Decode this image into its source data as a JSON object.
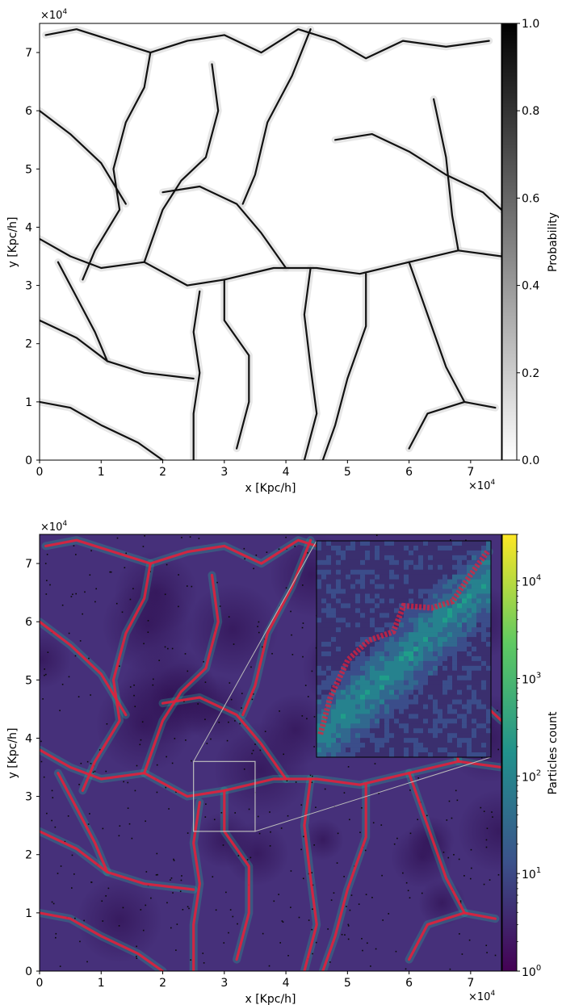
{
  "chart_data": [
    {
      "type": "heatmap",
      "title": "",
      "xlabel": "x [Kpc/h]",
      "ylabel": "y [Kpc/h]",
      "x_offset_label": "×10",
      "x_offset_exp": "4",
      "y_offset_label": "×10",
      "y_offset_exp": "4",
      "xlim": [
        0,
        7.5
      ],
      "ylim": [
        0,
        7.5
      ],
      "xticks": [
        "0",
        "1",
        "2",
        "3",
        "4",
        "5",
        "6",
        "7"
      ],
      "yticks": [
        "0",
        "1",
        "2",
        "3",
        "4",
        "5",
        "6",
        "7"
      ],
      "colormap": "gray_r",
      "colorbar": {
        "label": "Probability",
        "scale": "linear",
        "range": [
          0,
          1
        ],
        "ticks": [
          "0.0",
          "0.2",
          "0.4",
          "0.6",
          "0.8",
          "1.0"
        ],
        "colors": [
          "#ffffff",
          "#000000"
        ]
      },
      "filament_paths": [
        [
          [
            0.1,
            7.3
          ],
          [
            0.6,
            7.4
          ],
          [
            1.2,
            7.2
          ],
          [
            1.8,
            7.0
          ],
          [
            2.4,
            7.2
          ],
          [
            3.0,
            7.3
          ],
          [
            3.6,
            7.0
          ],
          [
            4.2,
            7.4
          ],
          [
            4.8,
            7.2
          ],
          [
            5.3,
            6.9
          ],
          [
            5.9,
            7.2
          ],
          [
            6.6,
            7.1
          ],
          [
            7.3,
            7.2
          ]
        ],
        [
          [
            1.8,
            7.0
          ],
          [
            1.7,
            6.4
          ],
          [
            1.4,
            5.8
          ],
          [
            1.2,
            5.0
          ],
          [
            1.3,
            4.3
          ],
          [
            0.9,
            3.6
          ],
          [
            0.7,
            3.1
          ]
        ],
        [
          [
            0.0,
            6.0
          ],
          [
            0.5,
            5.6
          ],
          [
            1.0,
            5.1
          ],
          [
            1.4,
            4.4
          ]
        ],
        [
          [
            0.0,
            3.8
          ],
          [
            0.5,
            3.5
          ],
          [
            1.0,
            3.3
          ],
          [
            1.7,
            3.4
          ],
          [
            2.4,
            3.0
          ],
          [
            3.0,
            3.1
          ],
          [
            3.8,
            3.3
          ],
          [
            4.5,
            3.3
          ],
          [
            5.2,
            3.2
          ],
          [
            6.0,
            3.4
          ],
          [
            6.8,
            3.6
          ],
          [
            7.5,
            3.5
          ]
        ],
        [
          [
            2.0,
            4.6
          ],
          [
            2.6,
            4.7
          ],
          [
            3.2,
            4.4
          ],
          [
            3.6,
            3.9
          ],
          [
            4.0,
            3.3
          ]
        ],
        [
          [
            2.8,
            6.8
          ],
          [
            2.9,
            6.0
          ],
          [
            2.7,
            5.2
          ],
          [
            2.3,
            4.8
          ],
          [
            2.0,
            4.3
          ],
          [
            1.7,
            3.4
          ]
        ],
        [
          [
            4.4,
            7.4
          ],
          [
            4.1,
            6.6
          ],
          [
            3.7,
            5.8
          ],
          [
            3.5,
            4.9
          ],
          [
            3.3,
            4.4
          ]
        ],
        [
          [
            4.8,
            5.5
          ],
          [
            5.4,
            5.6
          ],
          [
            6.0,
            5.3
          ],
          [
            6.6,
            4.9
          ],
          [
            7.2,
            4.6
          ],
          [
            7.5,
            4.3
          ]
        ],
        [
          [
            6.4,
            6.2
          ],
          [
            6.6,
            5.2
          ],
          [
            6.7,
            4.2
          ],
          [
            6.8,
            3.6
          ]
        ],
        [
          [
            2.6,
            2.9
          ],
          [
            2.5,
            2.2
          ],
          [
            2.6,
            1.5
          ],
          [
            2.5,
            0.8
          ],
          [
            2.5,
            0.0
          ]
        ],
        [
          [
            4.4,
            3.3
          ],
          [
            4.3,
            2.5
          ],
          [
            4.4,
            1.6
          ],
          [
            4.5,
            0.8
          ],
          [
            4.3,
            0.0
          ]
        ],
        [
          [
            5.3,
            3.2
          ],
          [
            5.3,
            2.3
          ],
          [
            5.0,
            1.4
          ],
          [
            4.8,
            0.6
          ],
          [
            4.6,
            0.0
          ]
        ],
        [
          [
            6.0,
            3.4
          ],
          [
            6.3,
            2.5
          ],
          [
            6.6,
            1.6
          ],
          [
            6.9,
            1.0
          ],
          [
            7.4,
            0.9
          ]
        ],
        [
          [
            0.0,
            2.4
          ],
          [
            0.6,
            2.1
          ],
          [
            1.1,
            1.7
          ],
          [
            1.7,
            1.5
          ],
          [
            2.5,
            1.4
          ]
        ],
        [
          [
            0.0,
            1.0
          ],
          [
            0.5,
            0.9
          ],
          [
            1.0,
            0.6
          ],
          [
            1.6,
            0.3
          ],
          [
            2.0,
            0.0
          ]
        ],
        [
          [
            0.3,
            3.4
          ],
          [
            0.6,
            2.8
          ],
          [
            0.9,
            2.2
          ],
          [
            1.1,
            1.7
          ]
        ],
        [
          [
            6.0,
            0.2
          ],
          [
            6.3,
            0.8
          ],
          [
            6.9,
            1.0
          ]
        ],
        [
          [
            3.0,
            3.1
          ],
          [
            3.0,
            2.4
          ],
          [
            3.4,
            1.8
          ],
          [
            3.4,
            1.0
          ],
          [
            3.2,
            0.2
          ]
        ]
      ]
    },
    {
      "type": "heatmap",
      "title": "",
      "xlabel": "x [Kpc/h]",
      "ylabel": "y [Kpc/h]",
      "x_offset_label": "×10",
      "x_offset_exp": "4",
      "y_offset_label": "×10",
      "y_offset_exp": "4",
      "xlim": [
        0,
        7.5
      ],
      "ylim": [
        0,
        7.5
      ],
      "xticks": [
        "0",
        "1",
        "2",
        "3",
        "4",
        "5",
        "6",
        "7"
      ],
      "yticks": [
        "0",
        "1",
        "2",
        "3",
        "4",
        "5",
        "6",
        "7"
      ],
      "colormap": "viridis",
      "overlay_color": "#e0203c",
      "colorbar": {
        "label": "Particles count",
        "scale": "log",
        "range": [
          1,
          30000
        ],
        "tick_bases": [
          "10",
          "10",
          "10",
          "10",
          "10"
        ],
        "tick_exps": [
          "0",
          "1",
          "2",
          "3",
          "4"
        ],
        "tick_values": [
          1,
          10,
          100,
          1000,
          10000
        ],
        "colors": [
          "#440154",
          "#3b528b",
          "#21918c",
          "#5ec962",
          "#fde725"
        ]
      },
      "zoom_region": {
        "x": [
          2.5,
          3.5
        ],
        "y": [
          2.4,
          3.6
        ]
      },
      "inset_extent": {
        "x": [
          4.5,
          7.5
        ],
        "y": [
          3.8,
          7.4
        ]
      }
    }
  ]
}
